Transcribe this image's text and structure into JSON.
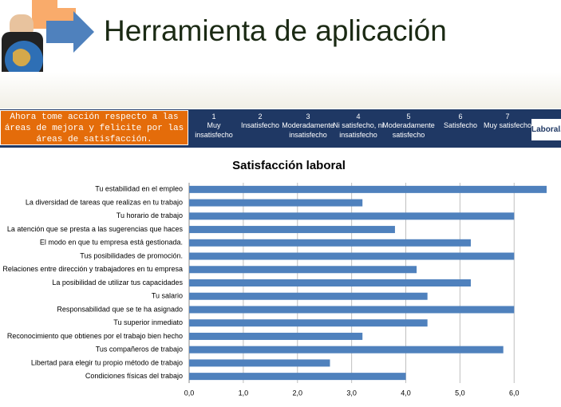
{
  "header": {
    "title": "Herramienta de aplicación",
    "instruction": "Ahora tome acción respecto a las áreas de mejora y felicite por las áreas de satisfacción.",
    "logo": "Laboral.N"
  },
  "scale": [
    {
      "number": "1",
      "label": "Muy insatisfecho"
    },
    {
      "number": "2",
      "label": "Insatisfecho"
    },
    {
      "number": "3",
      "label": "Moderadamente insatisfecho"
    },
    {
      "number": "4",
      "label": "Ni satisfecho, ni insatisfecho"
    },
    {
      "number": "5",
      "label": "Moderadamente satisfecho"
    },
    {
      "number": "6",
      "label": "Satisfecho"
    },
    {
      "number": "7",
      "label": "Muy satisfecho"
    }
  ],
  "chart_data": {
    "type": "barh",
    "title": "Satisfacción laboral",
    "categories": [
      "Tu estabilidad en el empleo",
      "La diversidad de tareas que realizas en tu trabajo",
      "Tu horario de trabajo",
      "La atención que se presta a las sugerencias que haces",
      "El modo en que tu empresa está gestionada.",
      "Tus posibilidades de promoción.",
      "Relaciones entre dirección y trabajadores en tu empresa",
      "La posibilidad de utilizar tus capacidades",
      "Tu salario",
      "Responsabilidad que se te ha asignado",
      "Tu superior inmediato",
      "Reconocimiento que obtienes por el trabajo bien hecho",
      "Tus compañeros de trabajo",
      "Libertad para elegir tu propio método de trabajo",
      "Condiciones físicas del trabajo"
    ],
    "values": [
      6.6,
      3.2,
      6.0,
      3.8,
      5.2,
      6.0,
      4.2,
      5.2,
      4.4,
      6.0,
      4.4,
      3.2,
      5.8,
      2.6,
      4.0
    ],
    "color": "#4f81bd",
    "xlim": [
      0,
      6.6
    ],
    "xticks": [
      {
        "value": 0,
        "label": "0,0"
      },
      {
        "value": 1,
        "label": "1,0"
      },
      {
        "value": 2,
        "label": "2,0"
      },
      {
        "value": 3,
        "label": "3,0"
      },
      {
        "value": 4,
        "label": "4,0"
      },
      {
        "value": 5,
        "label": "5,0"
      },
      {
        "value": 6,
        "label": "6,0"
      }
    ],
    "grid": true
  }
}
